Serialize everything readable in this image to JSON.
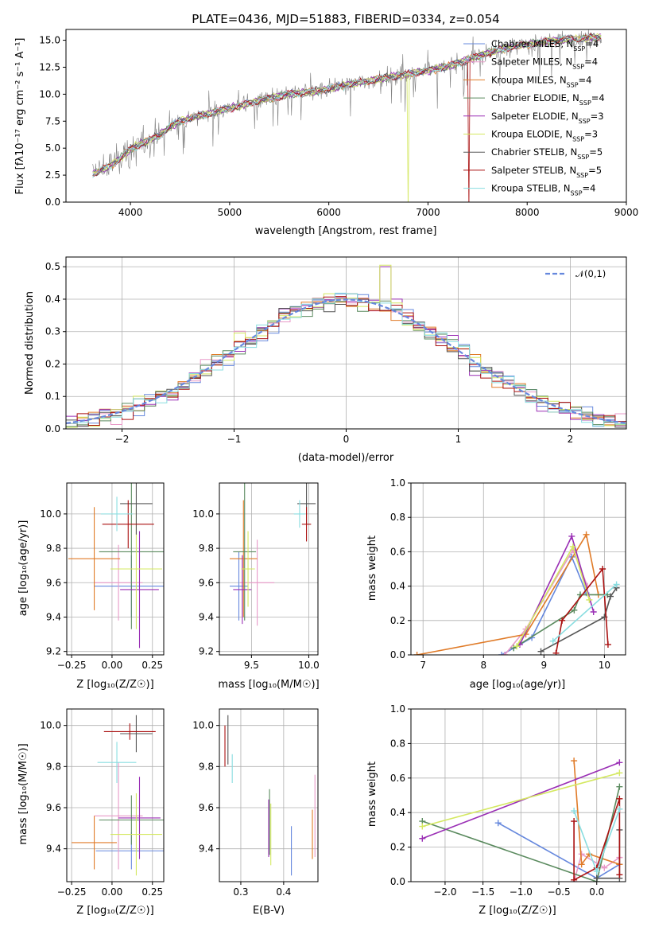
{
  "colors": [
    "#6688dd",
    "#e899c8",
    "#e07b28",
    "#5a8a5e",
    "#9a2fb5",
    "#d4e860",
    "#555555",
    "#aa1111",
    "#88dde0"
  ],
  "chart_data": [
    {
      "type": "line",
      "title": "PLATE=0436, MJD=51883, FIBERID=0334, z=0.054",
      "xlabel": "wavelength [Angstrom, rest frame]",
      "ylabel": "Flux [fλ10⁻¹⁷ erg cm⁻² s⁻¹ A⁻¹]",
      "xlim": [
        3350,
        9000
      ],
      "ylim": [
        0,
        16
      ],
      "xticks": [
        "4000",
        "5000",
        "6000",
        "7000",
        "8000",
        "9000"
      ],
      "yticks": [
        "0.0",
        "2.5",
        "5.0",
        "7.5",
        "10.0",
        "12.5",
        "15.0"
      ],
      "legend_position": "right",
      "legend": [
        {
          "name": "Chabrier MILES, N",
          "sub": "SSP",
          "suffix": "=4"
        },
        {
          "name": "Salpeter MILES, N",
          "sub": "SSP",
          "suffix": "=4"
        },
        {
          "name": "Kroupa MILES, N",
          "sub": "SSP",
          "suffix": "=4"
        },
        {
          "name": "Chabrier ELODIE, N",
          "sub": "SSP",
          "suffix": "=4"
        },
        {
          "name": "Salpeter ELODIE, N",
          "sub": "SSP",
          "suffix": "=3"
        },
        {
          "name": "Kroupa ELODIE, N",
          "sub": "SSP",
          "suffix": "=3"
        },
        {
          "name": "Chabrier STELIB, N",
          "sub": "SSP",
          "suffix": "=5"
        },
        {
          "name": "Salpeter STELIB, N",
          "sub": "SSP",
          "suffix": "=5"
        },
        {
          "name": "Kroupa STELIB, N",
          "sub": "SSP",
          "suffix": "=4"
        }
      ],
      "continuum": {
        "x": [
          3620,
          3700,
          3800,
          3900,
          4000,
          4100,
          4200,
          4300,
          4400,
          4500,
          4700,
          5000,
          5300,
          5600,
          5900,
          6200,
          6500,
          6800,
          7000,
          7200,
          7400,
          7600,
          7800,
          8000,
          8200,
          8400,
          8600,
          8750
        ],
        "y": [
          2.6,
          3.0,
          3.4,
          4.1,
          4.9,
          5.4,
          5.8,
          6.2,
          7.0,
          7.5,
          8.0,
          8.7,
          9.4,
          10.0,
          10.3,
          10.9,
          11.4,
          11.9,
          12.2,
          12.6,
          13.2,
          13.8,
          14.3,
          14.6,
          14.9,
          15.1,
          15.2,
          15.3
        ]
      }
    },
    {
      "type": "bar",
      "title": "",
      "xlabel": "(data-model)/error",
      "ylabel": "Normed distribution",
      "xlim": [
        -2.5,
        2.5
      ],
      "ylim": [
        0,
        0.53
      ],
      "xticks": [
        "−2",
        "−1",
        "0",
        "1",
        "2"
      ],
      "yticks": [
        "0.0",
        "0.1",
        "0.2",
        "0.3",
        "0.4",
        "0.5"
      ],
      "legend": "𝒩(0,1)",
      "legend_position": "top-right",
      "bin_width": 0.1
    },
    {
      "type": "scatter",
      "xlabel": "Z [log₁₀(Z/Z☉)]",
      "ylabel": "age  [log₁₀(age/yr)]",
      "xlim": [
        -0.28,
        0.32
      ],
      "ylim": [
        9.18,
        10.18
      ],
      "xticks": [
        "−0.25",
        "0.00",
        "0.25"
      ],
      "yticks": [
        "9.2",
        "9.4",
        "9.6",
        "9.8",
        "10.0"
      ],
      "points": [
        {
          "x": 0.12,
          "y": 9.58,
          "ex": 0.23,
          "ey": 0.18
        },
        {
          "x": 0.04,
          "y": 9.6,
          "ex": 0.15,
          "ey": 0.22
        },
        {
          "x": -0.11,
          "y": 9.74,
          "ex": 0.16,
          "ey": 0.3
        },
        {
          "x": 0.12,
          "y": 9.78,
          "ex": 0.2,
          "ey": 0.45
        },
        {
          "x": 0.17,
          "y": 9.56,
          "ex": 0.12,
          "ey": 0.34
        },
        {
          "x": 0.15,
          "y": 9.68,
          "ex": 0.16,
          "ey": 0.35
        },
        {
          "x": 0.15,
          "y": 10.06,
          "ex": 0.1,
          "ey": 0.18
        },
        {
          "x": 0.1,
          "y": 9.94,
          "ex": 0.16,
          "ey": 0.14
        },
        {
          "x": 0.03,
          "y": 10.0,
          "ex": 0.1,
          "ey": 0.1
        }
      ]
    },
    {
      "type": "scatter",
      "xlabel": "mass [log₁₀(M/M☉)]",
      "ylabel": "",
      "xlim": [
        9.22,
        10.08
      ],
      "ylim": [
        9.18,
        10.18
      ],
      "xticks": [
        "9.5",
        "10.0"
      ],
      "yticks": [
        "9.2",
        "9.4",
        "9.6",
        "9.8",
        "10.0"
      ],
      "points": [
        {
          "x": 9.39,
          "y": 9.58,
          "ex": 0.08,
          "ey": 0.2
        },
        {
          "x": 9.55,
          "y": 9.6,
          "ex": 0.15,
          "ey": 0.25
        },
        {
          "x": 9.43,
          "y": 9.74,
          "ex": 0.12,
          "ey": 0.34
        },
        {
          "x": 9.44,
          "y": 9.78,
          "ex": 0.1,
          "ey": 0.4
        },
        {
          "x": 9.42,
          "y": 9.56,
          "ex": 0.08,
          "ey": 0.2
        },
        {
          "x": 9.47,
          "y": 9.68,
          "ex": 0.06,
          "ey": 0.22
        },
        {
          "x": 9.98,
          "y": 10.06,
          "ex": 0.08,
          "ey": 0.12
        },
        {
          "x": 9.98,
          "y": 9.94,
          "ex": 0.04,
          "ey": 0.1
        },
        {
          "x": 9.92,
          "y": 10.0,
          "ex": 0.05,
          "ey": 0.08
        }
      ]
    },
    {
      "type": "line",
      "xlabel": "age  [log₁₀(age/yr)]",
      "ylabel": "mass weight",
      "xlim": [
        6.8,
        10.35
      ],
      "ylim": [
        0,
        1
      ],
      "xticks": [
        "7",
        "8",
        "9",
        "10"
      ],
      "yticks": [
        "0.0",
        "0.2",
        "0.4",
        "0.6",
        "0.8",
        "1.0"
      ],
      "series": [
        {
          "x": [
            8.3,
            8.8,
            9.46,
            9.7
          ],
          "y": [
            0.0,
            0.1,
            0.57,
            0.36
          ]
        },
        {
          "x": [
            8.35,
            8.7,
            9.48,
            9.72
          ],
          "y": [
            0.0,
            0.15,
            0.61,
            0.4
          ]
        },
        {
          "x": [
            6.9,
            8.7,
            9.7,
            9.9
          ],
          "y": [
            0.0,
            0.12,
            0.7,
            0.35
          ]
        },
        {
          "x": [
            8.5,
            9.5,
            9.6,
            10.05
          ],
          "y": [
            0.04,
            0.26,
            0.35,
            0.35
          ]
        },
        {
          "x": [
            8.6,
            9.46,
            9.82
          ],
          "y": [
            0.06,
            0.69,
            0.25
          ]
        },
        {
          "x": [
            8.55,
            9.48,
            9.75
          ],
          "y": [
            0.05,
            0.63,
            0.32
          ]
        },
        {
          "x": [
            8.95,
            10.0,
            10.1,
            10.2
          ],
          "y": [
            0.02,
            0.22,
            0.34,
            0.39
          ]
        },
        {
          "x": [
            9.2,
            9.3,
            9.97,
            10.06
          ],
          "y": [
            0.01,
            0.2,
            0.5,
            0.06
          ]
        },
        {
          "x": [
            9.15,
            10.2
          ],
          "y": [
            0.08,
            0.41
          ]
        }
      ]
    },
    {
      "type": "scatter",
      "xlabel": "Z [log₁₀(Z/Z☉)]",
      "ylabel": "mass [log₁₀(M/M☉)]",
      "xlim": [
        -0.28,
        0.32
      ],
      "ylim": [
        9.24,
        10.08
      ],
      "xticks": [
        "−0.25",
        "0.00",
        "0.25"
      ],
      "yticks": [
        "9.4",
        "9.6",
        "9.8",
        "10.0"
      ],
      "points": [
        {
          "x": 0.12,
          "y": 9.39,
          "ex": 0.22,
          "ey": 0.09
        },
        {
          "x": 0.04,
          "y": 9.56,
          "ex": 0.15,
          "ey": 0.26
        },
        {
          "x": -0.11,
          "y": 9.43,
          "ex": 0.14,
          "ey": 0.13
        },
        {
          "x": 0.12,
          "y": 9.54,
          "ex": 0.2,
          "ey": 0.12
        },
        {
          "x": 0.17,
          "y": 9.55,
          "ex": 0.13,
          "ey": 0.2
        },
        {
          "x": 0.15,
          "y": 9.47,
          "ex": 0.16,
          "ey": 0.2
        },
        {
          "x": 0.15,
          "y": 9.96,
          "ex": 0.1,
          "ey": 0.09
        },
        {
          "x": 0.11,
          "y": 9.97,
          "ex": 0.16,
          "ey": 0.04
        },
        {
          "x": 0.03,
          "y": 9.82,
          "ex": 0.12,
          "ey": 0.1
        }
      ]
    },
    {
      "type": "scatter",
      "xlabel": "E(B-V)",
      "ylabel": "",
      "xlim": [
        0.25,
        0.48
      ],
      "ylim": [
        9.24,
        10.08
      ],
      "xticks": [
        "0.3",
        "0.4"
      ],
      "yticks": [
        "9.4",
        "9.6",
        "9.8",
        "10.0"
      ],
      "points": [
        {
          "x": 0.418,
          "y": 9.39,
          "ey": 0.12
        },
        {
          "x": 0.473,
          "y": 9.56,
          "ey": 0.2
        },
        {
          "x": 0.467,
          "y": 9.47,
          "ey": 0.12
        },
        {
          "x": 0.367,
          "y": 9.53,
          "ey": 0.16
        },
        {
          "x": 0.365,
          "y": 9.5,
          "ey": 0.14
        },
        {
          "x": 0.37,
          "y": 9.47,
          "ey": 0.15
        },
        {
          "x": 0.27,
          "y": 9.93,
          "ey": 0.12
        },
        {
          "x": 0.263,
          "y": 9.9,
          "ey": 0.1
        },
        {
          "x": 0.28,
          "y": 9.79,
          "ey": 0.07
        }
      ]
    },
    {
      "type": "line",
      "xlabel": "Z [log₁₀(Z/Z☉)]",
      "ylabel": "mass weight",
      "xlim": [
        -2.45,
        0.38
      ],
      "ylim": [
        0,
        1
      ],
      "xticks": [
        "−2.0",
        "−1.5",
        "−1.0",
        "−0.5",
        "0.0"
      ],
      "yticks": [
        "0.0",
        "0.2",
        "0.4",
        "0.6",
        "0.8",
        "1.0"
      ],
      "series": [
        {
          "x": [
            -1.3,
            0.0,
            0.3
          ],
          "y": [
            0.34,
            0.02,
            0.1
          ]
        },
        {
          "x": [
            -0.3,
            -0.2,
            0.1,
            0.3
          ],
          "y": [
            0.0,
            0.16,
            0.08,
            0.14
          ]
        },
        {
          "x": [
            -0.3,
            -0.2,
            -0.1,
            0.3
          ],
          "y": [
            0.7,
            0.1,
            0.16,
            0.1
          ]
        },
        {
          "x": [
            -2.3,
            0.0,
            0.3
          ],
          "y": [
            0.35,
            0.0,
            0.55
          ]
        },
        {
          "x": [
            -2.3,
            0.3
          ],
          "y": [
            0.25,
            0.69
          ]
        },
        {
          "x": [
            -2.3,
            0.3
          ],
          "y": [
            0.32,
            0.63
          ]
        },
        {
          "x": [
            0.0,
            0.3,
            0.3
          ],
          "y": [
            0.02,
            0.02,
            0.3
          ]
        },
        {
          "x": [
            -0.3,
            -0.3,
            0.0,
            0.3,
            0.3
          ],
          "y": [
            0.35,
            0.01,
            0.08,
            0.48,
            0.04
          ]
        },
        {
          "x": [
            -0.3,
            0.0,
            0.3
          ],
          "y": [
            0.41,
            0.06,
            0.42
          ]
        }
      ]
    }
  ]
}
